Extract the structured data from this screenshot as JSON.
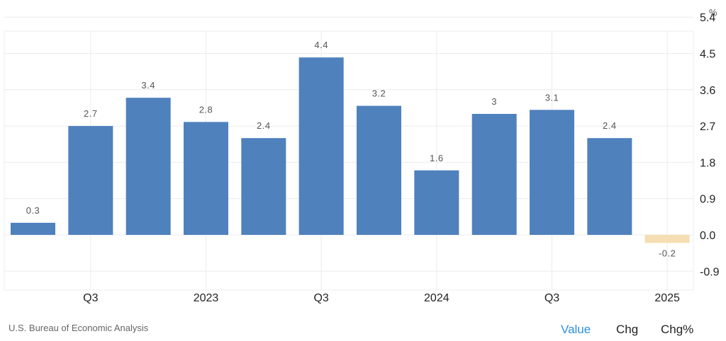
{
  "chart_data": {
    "type": "bar",
    "unit": "%",
    "categories": [
      "",
      "Q3",
      "",
      "2023",
      "",
      "Q3",
      "",
      "2024",
      "",
      "Q3",
      "",
      "2025"
    ],
    "values": [
      0.3,
      2.7,
      3.4,
      2.8,
      2.4,
      4.4,
      3.2,
      1.6,
      3.0,
      3.1,
      2.4,
      -0.2
    ],
    "data_labels": [
      "0.3",
      "2.7",
      "3.4",
      "2.8",
      "2.4",
      "4.4",
      "3.2",
      "1.6",
      "3",
      "3.1",
      "2.4",
      "-0.2"
    ],
    "ylim": [
      -0.9,
      5.4
    ],
    "y_ticks": [
      "5.4",
      "4.5",
      "3.6",
      "2.7",
      "1.8",
      "0.9",
      "0.0",
      "-0.9"
    ],
    "y_tick_values": [
      5.4,
      4.5,
      3.6,
      2.7,
      1.8,
      0.9,
      0.0,
      -0.9
    ],
    "grid": true,
    "colors": {
      "positive": "#4f81bd",
      "negative": "#f5deb3",
      "grid": "#ececec"
    }
  },
  "source": "U.S. Bureau of Economic Analysis",
  "view_toggles": {
    "value": "Value",
    "chg": "Chg",
    "chg_pct": "Chg%"
  }
}
